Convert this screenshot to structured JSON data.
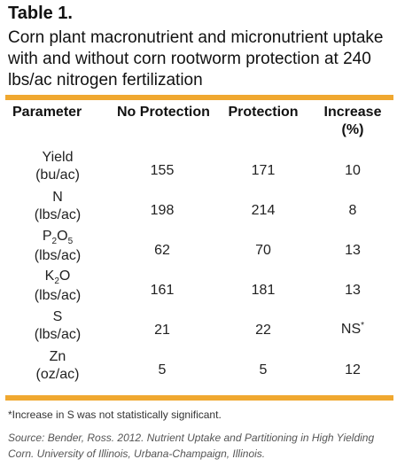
{
  "table_label": "Table 1.",
  "caption": "Corn plant macronutrient and micronutrient uptake with and without corn rootworm protection at 240 lbs/ac nitrogen fertilization",
  "headers": {
    "parameter": "Parameter",
    "no_protection": "No Protection",
    "protection": "Protection",
    "increase": "Increase (%)"
  },
  "rows": [
    {
      "name": "Yield",
      "unit": "(bu/ac)",
      "no_protection": "155",
      "protection": "171",
      "increase": "10"
    },
    {
      "name": "N",
      "unit": "(lbs/ac)",
      "no_protection": "198",
      "protection": "214",
      "increase": "8"
    },
    {
      "name_main": "P",
      "name_sub1": "2",
      "name_mid": "O",
      "name_sub2": "5",
      "unit": "(lbs/ac)",
      "no_protection": "62",
      "protection": "70",
      "increase": "13"
    },
    {
      "name_main": "K",
      "name_sub1": "2",
      "name_mid": "O",
      "unit": "(lbs/ac)",
      "no_protection": "161",
      "protection": "181",
      "increase": "13"
    },
    {
      "name": "S",
      "unit": "(lbs/ac)",
      "no_protection": "21",
      "protection": "22",
      "increase": "NS",
      "increase_mark": "*"
    },
    {
      "name": "Zn",
      "unit": "(oz/ac)",
      "no_protection": "5",
      "protection": "5",
      "increase": "12"
    }
  ],
  "footnote": "*Increase in S was not statistically significant.",
  "source": "Source: Bender, Ross. 2012. Nutrient Uptake and Partitioning in High Yielding Corn. University of Illinois, Urbana-Champaign, Illinois.",
  "colors": {
    "accent_rule": "#f0a830",
    "text": "#1a1a1a",
    "source_text": "#555555"
  }
}
